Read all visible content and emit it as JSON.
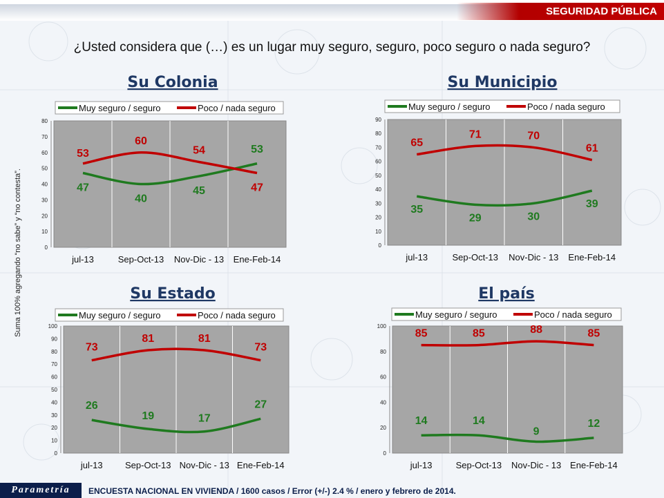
{
  "header": {
    "section": "SEGURIDAD PÚBLICA",
    "question": "¿Usted considera que (…) es un lugar muy seguro, seguro, poco seguro o nada seguro?",
    "side_note": "Suma 100% agregando “no sabe” y “no contesta”."
  },
  "footer": {
    "brand": "Parametría",
    "note": "ENCUESTA NACIONAL EN VIVIENDA / 1600 casos / Error (+/-)  2.4 % / enero y febrero de 2014."
  },
  "colors": {
    "green": "#1f7a1f",
    "red": "#c00000",
    "plot_bg": "#a6a6a6",
    "title": "#1f3864"
  },
  "chart_data": [
    {
      "type": "line",
      "title": "Su Colonia",
      "categories": [
        "jul-13",
        "Sep-Oct-13",
        "Nov-Dic - 13",
        "Ene-Feb-14"
      ],
      "ylim": [
        0,
        80
      ],
      "yticks": [
        0,
        10,
        20,
        30,
        40,
        50,
        60,
        70,
        80
      ],
      "grid": true,
      "legend": "top",
      "series": [
        {
          "name": "Muy seguro / seguro",
          "values": [
            47,
            40,
            45,
            53
          ]
        },
        {
          "name": "Poco / nada seguro",
          "values": [
            53,
            60,
            54,
            47
          ]
        }
      ]
    },
    {
      "type": "line",
      "title": "Su Municipio",
      "categories": [
        "jul-13",
        "Sep-Oct-13",
        "Nov-Dic - 13",
        "Ene-Feb-14"
      ],
      "ylim": [
        0,
        90
      ],
      "yticks": [
        0,
        10,
        20,
        30,
        40,
        50,
        60,
        70,
        80,
        90
      ],
      "grid": true,
      "legend": "top",
      "series": [
        {
          "name": "Muy seguro / seguro",
          "values": [
            35,
            29,
            30,
            39
          ]
        },
        {
          "name": "Poco / nada seguro",
          "values": [
            65,
            71,
            70,
            61
          ]
        }
      ]
    },
    {
      "type": "line",
      "title": "Su Estado",
      "categories": [
        "jul-13",
        "Sep-Oct-13",
        "Nov-Dic - 13",
        "Ene-Feb-14"
      ],
      "ylim": [
        0,
        100
      ],
      "yticks": [
        0,
        10,
        20,
        30,
        40,
        50,
        60,
        70,
        80,
        90,
        100
      ],
      "grid": true,
      "legend": "top",
      "series": [
        {
          "name": "Muy seguro / seguro",
          "values": [
            26,
            19,
            17,
            27
          ]
        },
        {
          "name": "Poco / nada seguro",
          "values": [
            73,
            81,
            81,
            73
          ]
        }
      ]
    },
    {
      "type": "line",
      "title": "El país",
      "categories": [
        "jul-13",
        "Sep-Oct-13",
        "Nov-Dic - 13",
        "Ene-Feb-14"
      ],
      "ylim": [
        0,
        100
      ],
      "yticks": [
        0,
        20,
        40,
        60,
        80,
        100
      ],
      "grid": true,
      "legend": "top",
      "series": [
        {
          "name": "Muy seguro / seguro",
          "values": [
            14,
            14,
            9,
            12
          ]
        },
        {
          "name": "Poco / nada seguro",
          "values": [
            85,
            85,
            88,
            85
          ]
        }
      ]
    }
  ]
}
